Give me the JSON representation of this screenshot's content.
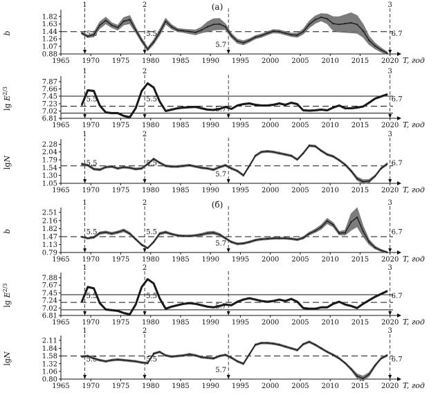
{
  "panel_labels": [
    "(а)",
    "(б)"
  ],
  "x_axis_label": "T, год",
  "x_tick_labels": [
    "1965",
    "1970",
    "1975",
    "1980",
    "1985",
    "1990",
    "1995",
    "2000",
    "2005",
    "2010",
    "2015",
    "2020"
  ],
  "event_markers": [
    {
      "number": "1",
      "year": 1969,
      "magnitude": "5.5"
    },
    {
      "number": "2",
      "year": 1979,
      "magnitude": "5.5"
    },
    {
      "number": "",
      "year": 1993,
      "magnitude": "5.7"
    },
    {
      "number": "3",
      "year": 2020,
      "magnitude": "6.7"
    }
  ],
  "colors": {
    "curve": "#1a1a1a",
    "band": "#6e6e6e",
    "axes": "#111111"
  },
  "chart_data": [
    {
      "type": "line",
      "group": "а",
      "ylabel": "b",
      "yticks": [
        "1.82",
        "1.63",
        "1.44",
        "1.26",
        "1.07",
        "0.88"
      ],
      "ylim": [
        0.88,
        1.92
      ],
      "ref_lines": [
        {
          "y": 1.44,
          "style": "dashed"
        }
      ],
      "x": [
        1968.5,
        1969.5,
        1970.5,
        1971.5,
        1972.5,
        1973.5,
        1974.5,
        1975.5,
        1976.5,
        1977.5,
        1978.5,
        1979.5,
        1980.5,
        1981.5,
        1982.5,
        1983.5,
        1984.5,
        1985.5,
        1986.5,
        1987.5,
        1988.5,
        1989.5,
        1990.5,
        1991.5,
        1992.5,
        1993.5,
        1994.5,
        1995.5,
        1996.5,
        1997.5,
        1998.5,
        1999.5,
        2000.5,
        2001.5,
        2002.5,
        2003.5,
        2004.5,
        2005.5,
        2006.5,
        2007.5,
        2008.5,
        2009.5,
        2010.5,
        2011.5,
        2012.5,
        2013.5,
        2014.5,
        2015.5,
        2016.5,
        2017.5,
        2018.5,
        2019.5
      ],
      "values": [
        1.4,
        1.32,
        1.36,
        1.6,
        1.72,
        1.6,
        1.54,
        1.7,
        1.74,
        1.48,
        1.22,
        1.0,
        1.18,
        1.42,
        1.7,
        1.56,
        1.48,
        1.46,
        1.44,
        1.42,
        1.48,
        1.56,
        1.62,
        1.63,
        1.56,
        1.34,
        1.2,
        1.16,
        1.22,
        1.3,
        1.34,
        1.4,
        1.45,
        1.44,
        1.4,
        1.36,
        1.35,
        1.44,
        1.62,
        1.74,
        1.8,
        1.76,
        1.64,
        1.62,
        1.64,
        1.66,
        1.62,
        1.46,
        1.22,
        1.08,
        0.98,
        0.9
      ],
      "band": [
        0.03,
        0.03,
        0.05,
        0.08,
        0.08,
        0.06,
        0.06,
        0.09,
        0.1,
        0.06,
        0.05,
        0.04,
        0.05,
        0.07,
        0.07,
        0.05,
        0.04,
        0.04,
        0.05,
        0.06,
        0.07,
        0.12,
        0.14,
        0.14,
        0.07,
        0.05,
        0.05,
        0.05,
        0.04,
        0.04,
        0.04,
        0.04,
        0.04,
        0.04,
        0.04,
        0.04,
        0.05,
        0.06,
        0.08,
        0.09,
        0.09,
        0.12,
        0.17,
        0.19,
        0.22,
        0.25,
        0.22,
        0.16,
        0.1,
        0.07,
        0.05,
        0.03
      ]
    },
    {
      "type": "line",
      "group": "а",
      "ylabel": "lg E^2/3",
      "yticks": [
        "7.87",
        "7.66",
        "7.45",
        "7.23",
        "7.02",
        "6.81"
      ],
      "ylim": [
        6.81,
        7.95
      ],
      "ref_lines": [
        {
          "y": 7.45,
          "style": "solid"
        },
        {
          "y": 7.16,
          "style": "dashed"
        },
        {
          "y": 6.96,
          "style": "solid"
        }
      ],
      "x": [
        1968.5,
        1969.5,
        1970.5,
        1971.5,
        1972.5,
        1973.5,
        1974.5,
        1975.5,
        1976.5,
        1977.5,
        1978.5,
        1979.5,
        1980.5,
        1981.5,
        1982.5,
        1983.5,
        1984.5,
        1985.5,
        1986.5,
        1987.5,
        1988.5,
        1989.5,
        1990.5,
        1991.5,
        1992.5,
        1993.5,
        1994.5,
        1995.5,
        1996.5,
        1997.5,
        1998.5,
        1999.5,
        2000.5,
        2001.5,
        2002.5,
        2003.5,
        2004.5,
        2005.5,
        2006.5,
        2007.5,
        2008.5,
        2009.5,
        2010.5,
        2011.5,
        2012.5,
        2013.5,
        2014.5,
        2015.5,
        2016.5,
        2017.5,
        2018.5,
        2019.5
      ],
      "values": [
        7.2,
        7.62,
        7.6,
        7.18,
        6.98,
        6.96,
        6.96,
        6.88,
        6.84,
        7.1,
        7.6,
        7.82,
        7.7,
        7.3,
        7.02,
        7.06,
        7.1,
        7.12,
        7.13,
        7.14,
        7.1,
        7.06,
        7.05,
        7.08,
        7.14,
        7.08,
        7.18,
        7.22,
        7.24,
        7.2,
        7.18,
        7.18,
        7.2,
        7.24,
        7.2,
        7.26,
        7.22,
        7.04,
        7.03,
        7.04,
        7.06,
        7.04,
        7.12,
        7.18,
        7.1,
        7.1,
        7.12,
        7.15,
        7.26,
        7.38,
        7.44,
        7.5
      ],
      "band": [
        0.02,
        0.02,
        0.02,
        0.02,
        0.02,
        0.02,
        0.02,
        0.02,
        0.02,
        0.02,
        0.02,
        0.02,
        0.02,
        0.02,
        0.02,
        0.02,
        0.02,
        0.02,
        0.02,
        0.02,
        0.02,
        0.02,
        0.02,
        0.02,
        0.02,
        0.02,
        0.02,
        0.02,
        0.02,
        0.02,
        0.02,
        0.02,
        0.02,
        0.02,
        0.02,
        0.02,
        0.02,
        0.02,
        0.02,
        0.02,
        0.02,
        0.02,
        0.02,
        0.02,
        0.02,
        0.02,
        0.02,
        0.02,
        0.02,
        0.02,
        0.02,
        0.02
      ]
    },
    {
      "type": "line",
      "group": "а",
      "ylabel": "lg N",
      "yticks": [
        "2.28",
        "2.04",
        "1.79",
        "1.54",
        "1.30",
        "1.05"
      ],
      "ylim": [
        1.05,
        2.36
      ],
      "ref_lines": [
        {
          "y": 1.6,
          "style": "dashed"
        }
      ],
      "x": [
        1968.5,
        1969.5,
        1970.5,
        1971.5,
        1972.5,
        1973.5,
        1974.5,
        1975.5,
        1976.5,
        1977.5,
        1978.5,
        1979.5,
        1980.5,
        1981.5,
        1982.5,
        1983.5,
        1984.5,
        1985.5,
        1986.5,
        1987.5,
        1988.5,
        1989.5,
        1990.5,
        1991.5,
        1992.5,
        1993.5,
        1994.5,
        1995.5,
        1996.5,
        1997.5,
        1998.5,
        1999.5,
        2000.5,
        2001.5,
        2002.5,
        2003.5,
        2004.5,
        2005.5,
        2006.5,
        2007.5,
        2008.5,
        2009.5,
        2010.5,
        2011.5,
        2012.5,
        2013.5,
        2014.5,
        2015.5,
        2016.5,
        2017.5,
        2018.5,
        2019.5
      ],
      "values": [
        1.66,
        1.62,
        1.5,
        1.48,
        1.56,
        1.58,
        1.52,
        1.56,
        1.54,
        1.5,
        1.52,
        1.66,
        1.82,
        1.7,
        1.6,
        1.58,
        1.58,
        1.6,
        1.62,
        1.58,
        1.54,
        1.52,
        1.48,
        1.56,
        1.62,
        1.52,
        1.44,
        1.3,
        1.6,
        1.92,
        2.04,
        2.06,
        2.04,
        2.0,
        1.96,
        1.92,
        1.8,
        2.0,
        2.24,
        2.22,
        2.08,
        1.96,
        1.9,
        1.78,
        1.64,
        1.44,
        1.2,
        1.1,
        1.12,
        1.28,
        1.52,
        1.66
      ],
      "band": [
        0.03,
        0.03,
        0.03,
        0.03,
        0.03,
        0.03,
        0.03,
        0.03,
        0.03,
        0.03,
        0.03,
        0.03,
        0.03,
        0.03,
        0.03,
        0.03,
        0.03,
        0.03,
        0.03,
        0.03,
        0.03,
        0.03,
        0.03,
        0.03,
        0.03,
        0.03,
        0.03,
        0.03,
        0.03,
        0.03,
        0.03,
        0.03,
        0.03,
        0.03,
        0.03,
        0.03,
        0.03,
        0.03,
        0.03,
        0.03,
        0.03,
        0.03,
        0.03,
        0.03,
        0.03,
        0.04,
        0.05,
        0.06,
        0.05,
        0.03,
        0.03,
        0.03
      ]
    },
    {
      "type": "line",
      "group": "б",
      "ylabel": "b",
      "yticks": [
        "2.51",
        "2.16",
        "1.82",
        "1.47",
        "1.13",
        "0.79"
      ],
      "ylim": [
        0.79,
        2.6
      ],
      "ref_lines": [
        {
          "y": 1.47,
          "style": "dashed"
        }
      ],
      "x": [
        1968.5,
        1969.5,
        1970.5,
        1971.5,
        1972.5,
        1973.5,
        1974.5,
        1975.5,
        1976.5,
        1977.5,
        1978.5,
        1979.5,
        1980.5,
        1981.5,
        1982.5,
        1983.5,
        1984.5,
        1985.5,
        1986.5,
        1987.5,
        1988.5,
        1989.5,
        1990.5,
        1991.5,
        1992.5,
        1993.5,
        1994.5,
        1995.5,
        1996.5,
        1997.5,
        1998.5,
        1999.5,
        2000.5,
        2001.5,
        2002.5,
        2003.5,
        2004.5,
        2005.5,
        2006.5,
        2007.5,
        2008.5,
        2009.5,
        2010.5,
        2011.5,
        2012.5,
        2013.5,
        2014.5,
        2015.5,
        2016.5,
        2017.5,
        2018.5,
        2019.5
      ],
      "values": [
        1.46,
        1.4,
        1.44,
        1.62,
        1.66,
        1.6,
        1.66,
        1.74,
        1.6,
        1.36,
        1.12,
        0.98,
        1.24,
        1.6,
        1.66,
        1.58,
        1.52,
        1.5,
        1.5,
        1.52,
        1.56,
        1.62,
        1.64,
        1.56,
        1.4,
        1.24,
        1.16,
        1.18,
        1.24,
        1.32,
        1.36,
        1.38,
        1.4,
        1.4,
        1.4,
        1.38,
        1.34,
        1.42,
        1.6,
        1.72,
        1.88,
        2.14,
        1.98,
        1.62,
        1.64,
        2.1,
        2.3,
        1.7,
        1.24,
        1.0,
        0.88,
        0.8
      ],
      "band": [
        0.03,
        0.03,
        0.04,
        0.05,
        0.05,
        0.05,
        0.05,
        0.06,
        0.05,
        0.04,
        0.04,
        0.03,
        0.04,
        0.05,
        0.05,
        0.04,
        0.04,
        0.04,
        0.04,
        0.04,
        0.05,
        0.06,
        0.06,
        0.05,
        0.04,
        0.04,
        0.04,
        0.04,
        0.04,
        0.04,
        0.04,
        0.04,
        0.04,
        0.04,
        0.04,
        0.04,
        0.04,
        0.05,
        0.06,
        0.07,
        0.09,
        0.11,
        0.09,
        0.07,
        0.1,
        0.35,
        0.4,
        0.22,
        0.1,
        0.06,
        0.04,
        0.03
      ]
    },
    {
      "type": "line",
      "group": "б",
      "ylabel": "lg E^2/3",
      "yticks": [
        "7.88",
        "7.67",
        "7.45",
        "7.24",
        "7.02",
        "6.81"
      ],
      "ylim": [
        6.81,
        7.95
      ],
      "ref_lines": [
        {
          "y": 7.4,
          "style": "solid"
        },
        {
          "y": 7.18,
          "style": "dashed"
        },
        {
          "y": 6.97,
          "style": "solid"
        }
      ],
      "x": [
        1968.5,
        1969.5,
        1970.5,
        1971.5,
        1972.5,
        1973.5,
        1974.5,
        1975.5,
        1976.5,
        1977.5,
        1978.5,
        1979.5,
        1980.5,
        1981.5,
        1982.5,
        1983.5,
        1984.5,
        1985.5,
        1986.5,
        1987.5,
        1988.5,
        1989.5,
        1990.5,
        1991.5,
        1992.5,
        1993.5,
        1994.5,
        1995.5,
        1996.5,
        1997.5,
        1998.5,
        1999.5,
        2000.5,
        2001.5,
        2002.5,
        2003.5,
        2004.5,
        2005.5,
        2006.5,
        2007.5,
        2008.5,
        2009.5,
        2010.5,
        2011.5,
        2012.5,
        2013.5,
        2014.5,
        2015.5,
        2016.5,
        2017.5,
        2018.5,
        2019.5
      ],
      "values": [
        7.2,
        7.62,
        7.58,
        7.16,
        6.98,
        6.96,
        6.94,
        6.88,
        6.84,
        7.12,
        7.62,
        7.84,
        7.72,
        7.3,
        7.0,
        7.06,
        7.1,
        7.14,
        7.16,
        7.14,
        7.1,
        7.06,
        7.04,
        7.08,
        7.12,
        7.1,
        7.2,
        7.26,
        7.3,
        7.26,
        7.22,
        7.2,
        7.22,
        7.26,
        7.22,
        7.28,
        7.2,
        7.02,
        7.0,
        7.0,
        7.04,
        7.04,
        7.14,
        7.2,
        7.12,
        7.08,
        7.02,
        7.14,
        7.24,
        7.34,
        7.42,
        7.5
      ],
      "band": [
        0.02,
        0.02,
        0.02,
        0.02,
        0.02,
        0.02,
        0.02,
        0.02,
        0.02,
        0.02,
        0.02,
        0.02,
        0.02,
        0.02,
        0.02,
        0.02,
        0.02,
        0.02,
        0.02,
        0.02,
        0.02,
        0.02,
        0.02,
        0.02,
        0.02,
        0.02,
        0.02,
        0.02,
        0.02,
        0.02,
        0.02,
        0.02,
        0.02,
        0.02,
        0.02,
        0.02,
        0.02,
        0.02,
        0.02,
        0.02,
        0.02,
        0.02,
        0.02,
        0.02,
        0.02,
        0.02,
        0.02,
        0.02,
        0.02,
        0.02,
        0.02,
        0.02
      ]
    },
    {
      "type": "line",
      "group": "б",
      "ylabel": "lg N",
      "yticks": [
        "2.11",
        "1.84",
        "1.58",
        "1.32",
        "1.06",
        "0.80"
      ],
      "ylim": [
        0.8,
        2.18
      ],
      "ref_lines": [
        {
          "y": 1.58,
          "style": "dashed"
        }
      ],
      "x": [
        1968.5,
        1969.5,
        1970.5,
        1971.5,
        1972.5,
        1973.5,
        1974.5,
        1975.5,
        1976.5,
        1977.5,
        1978.5,
        1979.5,
        1980.5,
        1981.5,
        1982.5,
        1983.5,
        1984.5,
        1985.5,
        1986.5,
        1987.5,
        1988.5,
        1989.5,
        1990.5,
        1991.5,
        1992.5,
        1993.5,
        1994.5,
        1995.5,
        1996.5,
        1997.5,
        1998.5,
        1999.5,
        2000.5,
        2001.5,
        2002.5,
        2003.5,
        2004.5,
        2005.5,
        2006.5,
        2007.5,
        2008.5,
        2009.5,
        2010.5,
        2011.5,
        2012.5,
        2013.5,
        2014.5,
        2015.5,
        2016.5,
        2017.5,
        2018.5,
        2019.5
      ],
      "values": [
        1.56,
        1.58,
        1.5,
        1.44,
        1.4,
        1.44,
        1.46,
        1.44,
        1.42,
        1.4,
        1.36,
        1.34,
        1.66,
        1.72,
        1.6,
        1.56,
        1.58,
        1.6,
        1.64,
        1.6,
        1.54,
        1.52,
        1.5,
        1.58,
        1.62,
        1.52,
        1.4,
        1.32,
        1.64,
        1.96,
        2.02,
        2.02,
        2.0,
        1.96,
        1.9,
        1.84,
        1.78,
        1.98,
        2.06,
        1.96,
        1.84,
        1.72,
        1.62,
        1.5,
        1.34,
        1.14,
        0.9,
        0.82,
        0.96,
        1.26,
        1.5,
        1.6
      ],
      "band": [
        0.03,
        0.03,
        0.03,
        0.03,
        0.03,
        0.03,
        0.03,
        0.03,
        0.03,
        0.03,
        0.03,
        0.03,
        0.03,
        0.03,
        0.03,
        0.03,
        0.03,
        0.03,
        0.03,
        0.03,
        0.03,
        0.03,
        0.03,
        0.03,
        0.03,
        0.03,
        0.03,
        0.03,
        0.03,
        0.03,
        0.03,
        0.03,
        0.03,
        0.03,
        0.03,
        0.03,
        0.03,
        0.03,
        0.03,
        0.03,
        0.03,
        0.03,
        0.03,
        0.03,
        0.03,
        0.04,
        0.07,
        0.08,
        0.06,
        0.04,
        0.03,
        0.03
      ]
    }
  ]
}
